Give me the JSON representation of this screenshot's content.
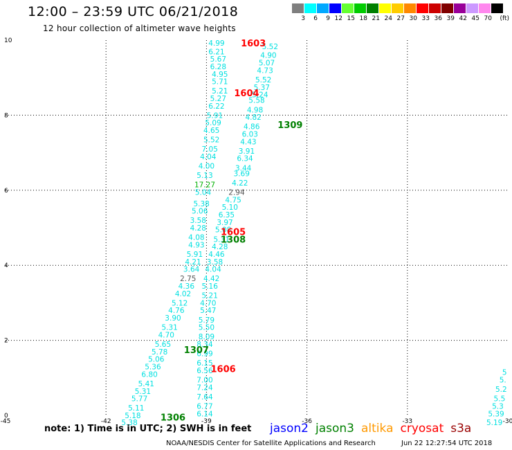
{
  "header": {
    "title": "12:00 – 23:59 UTC 06/21/2018",
    "subtitle": "12 hour collection of altimeter wave heights"
  },
  "colorbar": {
    "unit": "(ft)",
    "bins": [
      {
        "label": "3",
        "color": "#7f7f7f"
      },
      {
        "label": "6",
        "color": "#00ffff"
      },
      {
        "label": "9",
        "color": "#00a8ff"
      },
      {
        "label": "12",
        "color": "#0000ff"
      },
      {
        "label": "15",
        "color": "#66ff33"
      },
      {
        "label": "18",
        "color": "#00cc00"
      },
      {
        "label": "21",
        "color": "#008000"
      },
      {
        "label": "24",
        "color": "#ffff00"
      },
      {
        "label": "27",
        "color": "#ffcc00"
      },
      {
        "label": "30",
        "color": "#ff8800"
      },
      {
        "label": "33",
        "color": "#ff0000"
      },
      {
        "label": "36",
        "color": "#cc0000"
      },
      {
        "label": "39",
        "color": "#800000"
      },
      {
        "label": "42",
        "color": "#990099"
      },
      {
        "label": "45",
        "color": "#cc99ff"
      },
      {
        "label": "70",
        "color": "#ff88ee"
      },
      {
        "label": "",
        "color": "#000000"
      }
    ]
  },
  "footer": {
    "note": "note:  1) Time is in UTC;  2) SWH is in feet",
    "legend": [
      {
        "name": "jason2",
        "color": "#0000ff"
      },
      {
        "name": "jason3",
        "color": "#008000"
      },
      {
        "name": "altika",
        "color": "#ff9900"
      },
      {
        "name": "cryosat",
        "color": "#ff0000"
      },
      {
        "name": "s3a",
        "color": "#990000"
      }
    ],
    "credit": "NOAA/NESDIS Center for Satellite Applications and Research",
    "timestamp": "Jun 22 12:27:54 UTC 2018"
  },
  "chart_data": {
    "type": "scatter",
    "xlim": [
      -45,
      -30
    ],
    "ylim": [
      0,
      10
    ],
    "xticks": [
      "-45",
      "-42",
      "-39",
      "-36",
      "-33",
      "-30"
    ],
    "yticks": [
      "0",
      "2",
      "4",
      "6",
      "8",
      "10"
    ],
    "grid": true,
    "colors": {
      "swh": "#00e0e0",
      "gray": "#555555",
      "green": "#00b000",
      "jason3": "#008000",
      "cryosat": "#ff0000"
    },
    "time_labels": [
      {
        "text": "1603",
        "x": -37.6,
        "y": 9.93,
        "sat": "cryosat"
      },
      {
        "text": "1604",
        "x": -37.8,
        "y": 8.6,
        "sat": "cryosat"
      },
      {
        "text": "1309",
        "x": -36.5,
        "y": 7.75,
        "sat": "jason3"
      },
      {
        "text": "1605",
        "x": -38.2,
        "y": 4.9,
        "sat": "cryosat"
      },
      {
        "text": "1308",
        "x": -38.2,
        "y": 4.7,
        "sat": "jason3"
      },
      {
        "text": "1307",
        "x": -39.3,
        "y": 1.75,
        "sat": "jason3"
      },
      {
        "text": "1606",
        "x": -38.5,
        "y": 1.25,
        "sat": "cryosat"
      },
      {
        "text": "1306",
        "x": -40.0,
        "y": -0.05,
        "sat": "jason3"
      }
    ],
    "tracks": [
      {
        "name": "track-a",
        "values": [
          {
            "x": -38.7,
            "y": 9.93,
            "v": "4.99"
          },
          {
            "x": -38.7,
            "y": 9.7,
            "v": "6.21"
          },
          {
            "x": -38.65,
            "y": 9.5,
            "v": "5.67"
          },
          {
            "x": -38.65,
            "y": 9.3,
            "v": "6.28"
          },
          {
            "x": -38.6,
            "y": 9.1,
            "v": "4.95"
          },
          {
            "x": -38.6,
            "y": 8.9,
            "v": "5.71"
          },
          {
            "x": -38.6,
            "y": 8.65,
            "v": "5.21"
          },
          {
            "x": -38.65,
            "y": 8.45,
            "v": "5.27"
          },
          {
            "x": -38.7,
            "y": 8.25,
            "v": "6.22"
          },
          {
            "x": -38.75,
            "y": 8.0,
            "v": "5.91"
          },
          {
            "x": -38.8,
            "y": 7.8,
            "v": "5.09"
          },
          {
            "x": -38.85,
            "y": 7.6,
            "v": "4.65"
          },
          {
            "x": -38.85,
            "y": 7.35,
            "v": "5.52"
          },
          {
            "x": -38.9,
            "y": 7.1,
            "v": "7.05"
          },
          {
            "x": -38.95,
            "y": 6.9,
            "v": "4.04"
          },
          {
            "x": -39.0,
            "y": 6.65,
            "v": "4.00"
          },
          {
            "x": -39.05,
            "y": 6.4,
            "v": "5.13"
          },
          {
            "x": -39.05,
            "y": 6.15,
            "v": "17.27",
            "c": "green"
          },
          {
            "x": -39.1,
            "y": 5.95,
            "v": "5.04"
          },
          {
            "x": -39.15,
            "y": 5.65,
            "v": "5.38"
          },
          {
            "x": -39.2,
            "y": 5.45,
            "v": "5.06"
          },
          {
            "x": -39.25,
            "y": 5.2,
            "v": "3.58"
          },
          {
            "x": -39.25,
            "y": 5.0,
            "v": "4.28"
          },
          {
            "x": -39.3,
            "y": 4.75,
            "v": "4.08"
          },
          {
            "x": -39.3,
            "y": 4.55,
            "v": "4.93"
          },
          {
            "x": -39.35,
            "y": 4.3,
            "v": "5.91"
          },
          {
            "x": -39.4,
            "y": 4.1,
            "v": "4.21"
          },
          {
            "x": -39.45,
            "y": 3.9,
            "v": "3.64"
          },
          {
            "x": -39.55,
            "y": 3.65,
            "v": "2.75",
            "c": "gray"
          },
          {
            "x": -39.6,
            "y": 3.45,
            "v": "4.36"
          },
          {
            "x": -39.7,
            "y": 3.25,
            "v": "4.02"
          },
          {
            "x": -39.8,
            "y": 3.0,
            "v": "5.12"
          },
          {
            "x": -39.9,
            "y": 2.8,
            "v": "4.76"
          },
          {
            "x": -40.0,
            "y": 2.6,
            "v": "3.90"
          },
          {
            "x": -40.1,
            "y": 2.35,
            "v": "5.31"
          },
          {
            "x": -40.2,
            "y": 2.15,
            "v": "4.70"
          },
          {
            "x": -40.3,
            "y": 1.9,
            "v": "5.65"
          },
          {
            "x": -40.4,
            "y": 1.7,
            "v": "5.78"
          },
          {
            "x": -40.5,
            "y": 1.5,
            "v": "5.06"
          },
          {
            "x": -40.6,
            "y": 1.3,
            "v": "5.36"
          },
          {
            "x": -40.7,
            "y": 1.1,
            "v": "6.80"
          },
          {
            "x": -40.8,
            "y": 0.85,
            "v": "5.41"
          },
          {
            "x": -40.9,
            "y": 0.65,
            "v": "5.31"
          },
          {
            "x": -41.0,
            "y": 0.45,
            "v": "5.77"
          },
          {
            "x": -41.1,
            "y": 0.2,
            "v": "5.11"
          },
          {
            "x": -41.2,
            "y": 0.0,
            "v": "5.18"
          },
          {
            "x": -41.3,
            "y": -0.18,
            "v": "5.38"
          }
        ]
      },
      {
        "name": "track-b",
        "values": [
          {
            "x": -37.1,
            "y": 9.83,
            "v": "5.52"
          },
          {
            "x": -37.15,
            "y": 9.6,
            "v": "4.90"
          },
          {
            "x": -37.2,
            "y": 9.4,
            "v": "5.07"
          },
          {
            "x": -37.25,
            "y": 9.2,
            "v": "4.73"
          },
          {
            "x": -37.3,
            "y": 8.95,
            "v": "5.52"
          },
          {
            "x": -37.35,
            "y": 8.75,
            "v": "5.37"
          },
          {
            "x": -37.4,
            "y": 8.55,
            "v": "5.24"
          },
          {
            "x": -37.5,
            "y": 8.4,
            "v": "5.58"
          },
          {
            "x": -37.55,
            "y": 8.15,
            "v": "4.98"
          },
          {
            "x": -37.6,
            "y": 7.95,
            "v": "4.82"
          },
          {
            "x": -37.65,
            "y": 7.7,
            "v": "4.86"
          },
          {
            "x": -37.7,
            "y": 7.5,
            "v": "6.03"
          },
          {
            "x": -37.75,
            "y": 7.3,
            "v": "4.43"
          },
          {
            "x": -37.8,
            "y": 7.05,
            "v": "3.91"
          },
          {
            "x": -37.85,
            "y": 6.85,
            "v": "6.34"
          },
          {
            "x": -37.9,
            "y": 6.6,
            "v": "3.44"
          },
          {
            "x": -37.95,
            "y": 6.45,
            "v": "3.69"
          },
          {
            "x": -38.0,
            "y": 6.2,
            "v": "4.22"
          },
          {
            "x": -38.1,
            "y": 5.95,
            "v": "2.94",
            "c": "gray"
          },
          {
            "x": -38.2,
            "y": 5.75,
            "v": "4.75"
          },
          {
            "x": -38.3,
            "y": 5.55,
            "v": "5.10"
          },
          {
            "x": -38.4,
            "y": 5.35,
            "v": "6.35"
          },
          {
            "x": -38.45,
            "y": 5.15,
            "v": "3.97"
          },
          {
            "x": -38.5,
            "y": 4.95,
            "v": "5.08"
          },
          {
            "x": -38.55,
            "y": 4.7,
            "v": "5.31"
          },
          {
            "x": -38.6,
            "y": 4.5,
            "v": "4.28"
          },
          {
            "x": -38.7,
            "y": 4.3,
            "v": "4.46"
          },
          {
            "x": -38.75,
            "y": 4.1,
            "v": "3.58"
          },
          {
            "x": -38.8,
            "y": 3.9,
            "v": "4.04"
          },
          {
            "x": -38.85,
            "y": 3.65,
            "v": "4.42"
          },
          {
            "x": -38.9,
            "y": 3.45,
            "v": "5.16"
          },
          {
            "x": -38.9,
            "y": 3.2,
            "v": "5.21"
          },
          {
            "x": -38.95,
            "y": 3.0,
            "v": "4.70"
          },
          {
            "x": -38.95,
            "y": 2.8,
            "v": "5.47"
          },
          {
            "x": -39.0,
            "y": 2.55,
            "v": "5.79"
          },
          {
            "x": -39.0,
            "y": 2.35,
            "v": "5.50"
          },
          {
            "x": -39.0,
            "y": 2.1,
            "v": "8.09"
          },
          {
            "x": -39.05,
            "y": 1.9,
            "v": "8.34"
          },
          {
            "x": -39.05,
            "y": 1.65,
            "v": "6.99"
          },
          {
            "x": -39.05,
            "y": 1.4,
            "v": "6.15"
          },
          {
            "x": -39.05,
            "y": 1.2,
            "v": "6.56"
          },
          {
            "x": -39.05,
            "y": 0.95,
            "v": "7.00"
          },
          {
            "x": -39.05,
            "y": 0.75,
            "v": "7.24"
          },
          {
            "x": -39.05,
            "y": 0.5,
            "v": "7.64"
          },
          {
            "x": -39.05,
            "y": 0.25,
            "v": "6.77"
          },
          {
            "x": -39.05,
            "y": 0.05,
            "v": "6.14"
          }
        ]
      },
      {
        "name": "track-c",
        "values": [
          {
            "x": -30.1,
            "y": 1.15,
            "v": "5"
          },
          {
            "x": -30.15,
            "y": 0.95,
            "v": "5."
          },
          {
            "x": -30.2,
            "y": 0.7,
            "v": "5.2"
          },
          {
            "x": -30.25,
            "y": 0.45,
            "v": "5.5"
          },
          {
            "x": -30.3,
            "y": 0.25,
            "v": "5.3"
          },
          {
            "x": -30.35,
            "y": 0.05,
            "v": "5.39"
          },
          {
            "x": -30.4,
            "y": -0.18,
            "v": "5.19"
          }
        ]
      }
    ]
  }
}
